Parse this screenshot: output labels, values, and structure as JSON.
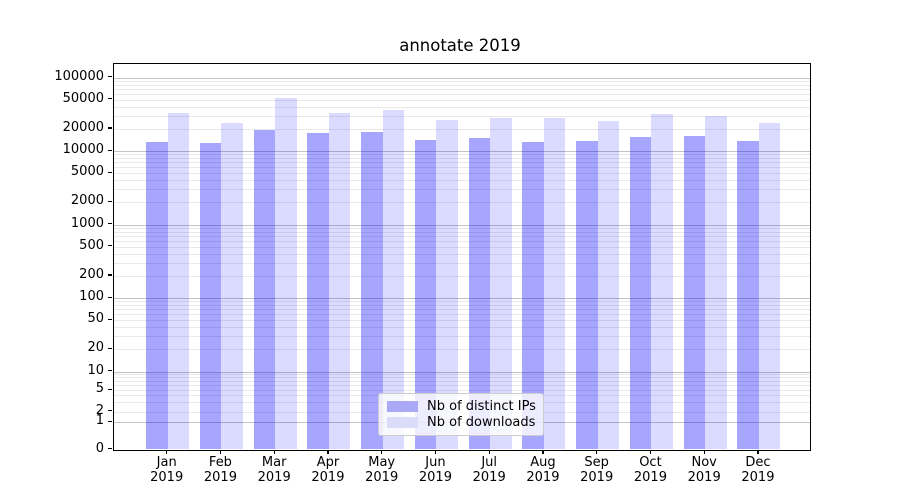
{
  "chart_data": {
    "type": "bar",
    "title": "annotate 2019",
    "yscale": "symlog",
    "grid": true,
    "legend_position": "lower center",
    "x_tick_year": "2019",
    "categories": [
      "Jan",
      "Feb",
      "Mar",
      "Apr",
      "May",
      "Jun",
      "Jul",
      "Aug",
      "Sep",
      "Oct",
      "Nov",
      "Dec"
    ],
    "series": [
      {
        "name": "Nb of distinct IPs",
        "color": "rgba(0,0,255,0.35)",
        "legend_color": "#a9a9f6",
        "values": [
          13400,
          13000,
          19500,
          17800,
          17900,
          14100,
          14800,
          13100,
          13700,
          15700,
          16200,
          13700
        ]
      },
      {
        "name": "Nb of downloads",
        "color": "rgba(0,0,255,0.14)",
        "legend_color": "#dbdbfa",
        "values": [
          32500,
          23700,
          53000,
          33200,
          36400,
          26400,
          28000,
          28000,
          25800,
          31900,
          29900,
          23700
        ]
      }
    ],
    "y_ticks": [
      0,
      1,
      2,
      5,
      10,
      20,
      50,
      100,
      200,
      500,
      1000,
      2000,
      5000,
      10000,
      20000,
      50000,
      100000
    ],
    "ylim": [
      0,
      155000
    ],
    "colors": {
      "grid_major": "#c3c3c3",
      "grid_minor": "#e9e9e9",
      "spine": "#000000"
    }
  }
}
